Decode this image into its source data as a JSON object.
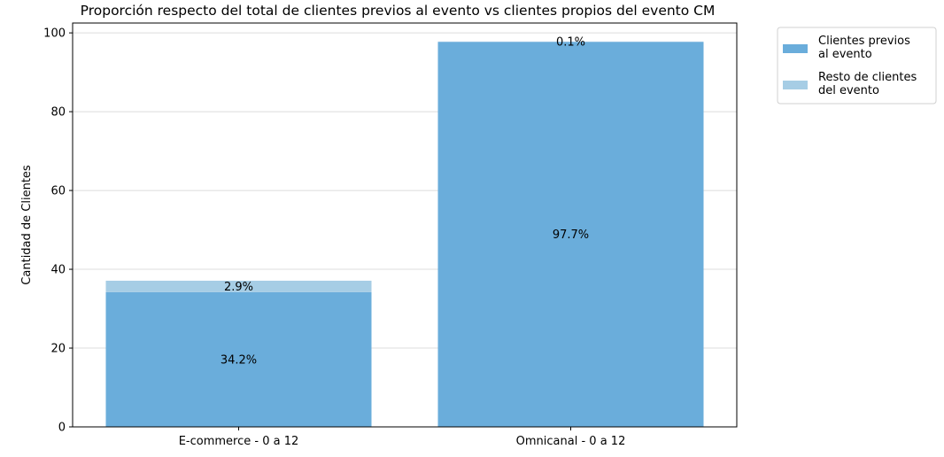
{
  "chart_data": {
    "type": "bar",
    "stacked": true,
    "title": "Proporción respecto del total de clientes previos al evento vs clientes propios del evento CM",
    "xlabel": "",
    "ylabel": "Cantidad de Clientes",
    "ylim": [
      0,
      102.5
    ],
    "yticks": [
      0,
      20,
      40,
      60,
      80,
      100
    ],
    "grid": "horizontal",
    "legend_position": "outside-right-top",
    "categories": [
      "E-commerce - 0 a 12",
      "Omnicanal - 0 a 12"
    ],
    "series": [
      {
        "name": "Clientes previos al evento",
        "legend_lines": [
          "Clientes previos",
          "al evento"
        ],
        "color": "#6aaddb",
        "values": [
          34.2,
          97.7
        ],
        "labels": [
          "34.2%",
          "97.7%"
        ]
      },
      {
        "name": "Resto de clientes del evento",
        "legend_lines": [
          "Resto de clientes",
          "del evento"
        ],
        "color": "#a6cde5",
        "values": [
          2.9,
          0.1
        ],
        "labels": [
          "2.9%",
          "0.1%"
        ]
      }
    ]
  }
}
